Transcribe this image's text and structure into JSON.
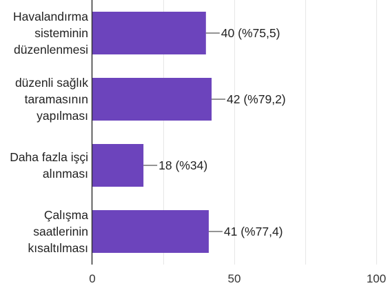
{
  "chart_data": {
    "type": "bar",
    "orientation": "horizontal",
    "categories": [
      [
        "Havalandırma",
        "sisteminin",
        "düzenlenmesi"
      ],
      [
        "düzenli sağlık",
        "taramasının",
        "yapılması"
      ],
      [
        "Daha fazla işçi",
        "alınması"
      ],
      [
        "Çalışma",
        "saatlerinin",
        "kısaltılması"
      ]
    ],
    "values": [
      40,
      42,
      18,
      41
    ],
    "data_labels": [
      "40 (%75,5)",
      "42 (%79,2)",
      "18 (%34)",
      "41 (%77,4)"
    ],
    "xlim": [
      0,
      100
    ],
    "xticks": [
      0,
      50,
      100
    ],
    "grid": true,
    "bar_color": "#6c44bc"
  }
}
